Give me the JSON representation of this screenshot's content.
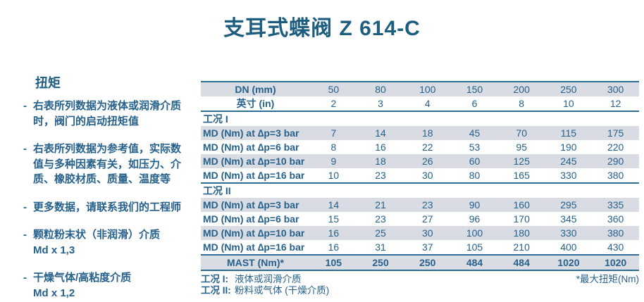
{
  "title": "支耳式蝶阀 Z 614-C",
  "colors": {
    "accent_text": "#26618C",
    "title_text": "#1D5E80",
    "row_stripe": "#D9DCE3",
    "table_border": "#2D6C94",
    "background": "#FFFFFF"
  },
  "sidebar": {
    "heading": "扭矩",
    "marker": "-",
    "bullets": [
      {
        "text": "右表所列数据为液体或润滑介质时，阀门的启动扭矩值"
      },
      {
        "text": "右表所列数据为参考值，实际数值与多种因素有关，如压力、介质、橡胶材质、质量、温度等"
      },
      {
        "text": "更多数据，请联系我们的工程师"
      },
      {
        "text": "颗粒粉末状（非润滑）介质",
        "note": "Md x 1,3"
      },
      {
        "text": "干燥气体/高粘度介质",
        "note": "Md x 1,2"
      }
    ]
  },
  "table": {
    "dn_label": "DN (mm)",
    "dn_values": [
      "50",
      "80",
      "100",
      "150",
      "200",
      "250",
      "300"
    ],
    "in_label": "英寸 (in)",
    "in_values": [
      "2",
      "3",
      "4",
      "6",
      "8",
      "10",
      "12"
    ],
    "sections": [
      {
        "title": "工况 I",
        "rows": [
          {
            "label": "MD (Nm) at ∆p=3 bar",
            "values": [
              "7",
              "14",
              "18",
              "45",
              "70",
              "115",
              "175"
            ]
          },
          {
            "label": "MD (Nm) at ∆p=6 bar",
            "values": [
              "8",
              "16",
              "22",
              "53",
              "95",
              "190",
              "220"
            ]
          },
          {
            "label": "MD (Nm) at ∆p=10 bar",
            "values": [
              "9",
              "18",
              "26",
              "60",
              "125",
              "245",
              "290"
            ]
          },
          {
            "label": "MD (Nm) at ∆p=16 bar",
            "values": [
              "10",
              "23",
              "30",
              "80",
              "165",
              "330",
              "380"
            ]
          }
        ]
      },
      {
        "title": "工况 II",
        "rows": [
          {
            "label": "MD (Nm) at ∆p=3 bar",
            "values": [
              "14",
              "21",
              "23",
              "90",
              "160",
              "295",
              "335"
            ]
          },
          {
            "label": "MD (Nm) at ∆p=6 bar",
            "values": [
              "15",
              "23",
              "27",
              "96",
              "170",
              "345",
              "360"
            ]
          },
          {
            "label": "MD (Nm) at ∆p=10 bar",
            "values": [
              "16",
              "25",
              "30",
              "100",
              "180",
              "330",
              "380"
            ]
          },
          {
            "label": "MD (Nm) at ∆p=16 bar",
            "values": [
              "16",
              "31",
              "37",
              "105",
              "210",
              "400",
              "430"
            ]
          }
        ]
      }
    ],
    "mast_label": "MAST (Nm)*",
    "mast_values": [
      "105",
      "250",
      "250",
      "484",
      "484",
      "1020",
      "1020"
    ]
  },
  "footnotes": {
    "left": [
      {
        "label": "工况 I:",
        "text": "液体或润滑介质"
      },
      {
        "label": "工况 II:",
        "text": "粉料或气体 (干燥介质)"
      }
    ],
    "right": "*最大扭矩(Nm)"
  }
}
